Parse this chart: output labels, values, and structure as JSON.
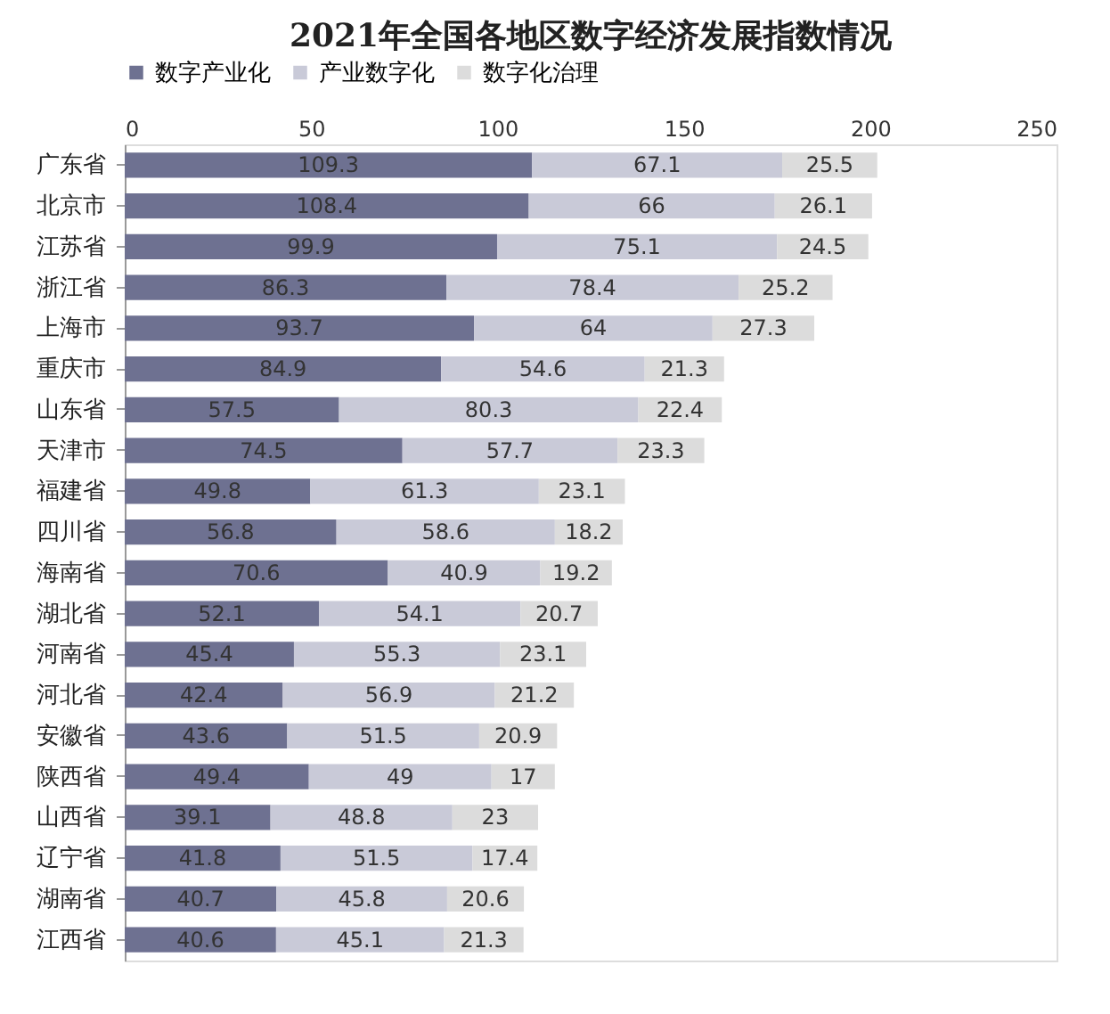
{
  "chart_data": {
    "type": "bar",
    "orientation": "horizontal",
    "stacked": true,
    "title": "2021年全国各地区数字经济发展指数情况",
    "categories": [
      "广东省",
      "北京市",
      "江苏省",
      "浙江省",
      "上海市",
      "重庆市",
      "山东省",
      "天津市",
      "福建省",
      "四川省",
      "海南省",
      "湖北省",
      "河南省",
      "河北省",
      "安徽省",
      "陕西省",
      "山西省",
      "辽宁省",
      "湖南省",
      "江西省"
    ],
    "series": [
      {
        "name": "数字产业化",
        "color": "#6e7191",
        "values": [
          109.3,
          108.4,
          99.9,
          86.3,
          93.7,
          84.9,
          57.5,
          74.5,
          49.8,
          56.8,
          70.6,
          52.1,
          45.4,
          42.4,
          43.6,
          49.4,
          39.1,
          41.8,
          40.7,
          40.6
        ]
      },
      {
        "name": "产业数字化",
        "color": "#c9cad8",
        "values": [
          67.1,
          66,
          75.1,
          78.4,
          64,
          54.6,
          80.3,
          57.7,
          61.3,
          58.6,
          40.9,
          54.1,
          55.3,
          56.9,
          51.5,
          49,
          48.8,
          51.5,
          45.8,
          45.1
        ]
      },
      {
        "name": "数字化治理",
        "color": "#dcdcdc",
        "values": [
          25.5,
          26.1,
          24.5,
          25.2,
          27.3,
          21.3,
          22.4,
          23.3,
          23.1,
          18.2,
          19.2,
          20.7,
          23.1,
          21.2,
          20.9,
          17,
          23,
          17.4,
          20.6,
          21.3
        ]
      }
    ],
    "xlim": [
      0,
      250
    ],
    "xticks": [
      0,
      50,
      100,
      150,
      200,
      250
    ],
    "data_labels": true,
    "legend": "top",
    "grid": false
  }
}
